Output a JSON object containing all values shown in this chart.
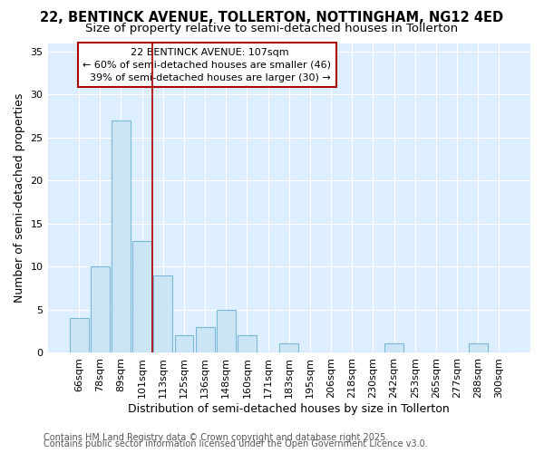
{
  "title1": "22, BENTINCK AVENUE, TOLLERTON, NOTTINGHAM, NG12 4ED",
  "title2": "Size of property relative to semi-detached houses in Tollerton",
  "xlabel": "Distribution of semi-detached houses by size in Tollerton",
  "ylabel": "Number of semi-detached properties",
  "categories": [
    "66sqm",
    "78sqm",
    "89sqm",
    "101sqm",
    "113sqm",
    "125sqm",
    "136sqm",
    "148sqm",
    "160sqm",
    "171sqm",
    "183sqm",
    "195sqm",
    "206sqm",
    "218sqm",
    "230sqm",
    "242sqm",
    "253sqm",
    "265sqm",
    "277sqm",
    "288sqm",
    "300sqm"
  ],
  "values": [
    4,
    10,
    27,
    13,
    9,
    2,
    3,
    5,
    2,
    0,
    1,
    0,
    0,
    0,
    0,
    1,
    0,
    0,
    0,
    1,
    0
  ],
  "bar_color": "#cce5f5",
  "bar_edge_color": "#7ab8d8",
  "vline_color": "#aa0000",
  "vline_position": 3.5,
  "annotation_box_color": "#ffffff",
  "annotation_box_edge": "#aa0000",
  "property_label": "22 BENTINCK AVENUE: 107sqm",
  "pct_smaller": 60,
  "n_smaller": 46,
  "pct_larger": 39,
  "n_larger": 30,
  "ylim": [
    0,
    36
  ],
  "yticks": [
    0,
    5,
    10,
    15,
    20,
    25,
    30,
    35
  ],
  "bg_color": "#ffffff",
  "plot_bg_color": "#ddeeff",
  "grid_color": "#ffffff",
  "title_fontsize": 10.5,
  "subtitle_fontsize": 9.5,
  "axis_label_fontsize": 9,
  "tick_fontsize": 8,
  "annot_fontsize": 8,
  "footer_fontsize": 7,
  "footer1": "Contains HM Land Registry data © Crown copyright and database right 2025.",
  "footer2": "Contains public sector information licensed under the Open Government Licence v3.0."
}
